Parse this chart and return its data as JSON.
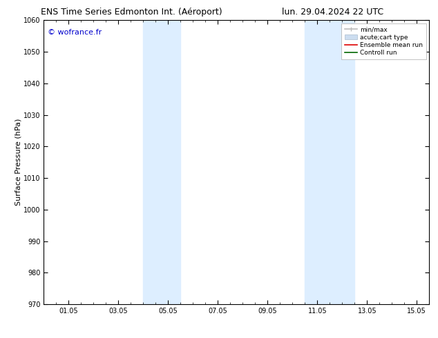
{
  "title_left": "ENS Time Series Edmonton Int. (Aéroport)",
  "title_right": "lun. 29.04.2024 22 UTC",
  "ylabel": "Surface Pressure (hPa)",
  "watermark": "© wofrance.fr",
  "watermark_color": "#0000cc",
  "ylim": [
    970,
    1060
  ],
  "yticks": [
    970,
    980,
    990,
    1000,
    1010,
    1020,
    1030,
    1040,
    1050,
    1060
  ],
  "xtick_labels": [
    "01.05",
    "03.05",
    "05.05",
    "07.05",
    "09.05",
    "11.05",
    "13.05",
    "15.05"
  ],
  "xtick_positions_days": [
    1,
    3,
    5,
    7,
    9,
    11,
    13,
    15
  ],
  "x_min": 0,
  "x_max": 15.5,
  "shaded_bands": [
    {
      "x_start_day": 4.0,
      "x_end_day": 5.5
    },
    {
      "x_start_day": 10.5,
      "x_end_day": 12.5
    }
  ],
  "shaded_color": "#ddeeff",
  "background_color": "#ffffff",
  "legend_entries": [
    {
      "label": "min/max",
      "color": "#bbbbbb",
      "lw": 1.2,
      "style": "minmax"
    },
    {
      "label": "acute;cart type",
      "color": "#ccddf0",
      "lw": 8,
      "style": "box"
    },
    {
      "label": "Ensemble mean run",
      "color": "#dd0000",
      "lw": 1.2,
      "style": "line"
    },
    {
      "label": "Controll run",
      "color": "#006600",
      "lw": 1.2,
      "style": "line"
    }
  ],
  "title_fontsize": 9,
  "tick_fontsize": 7,
  "ylabel_fontsize": 8,
  "legend_fontsize": 6.5
}
